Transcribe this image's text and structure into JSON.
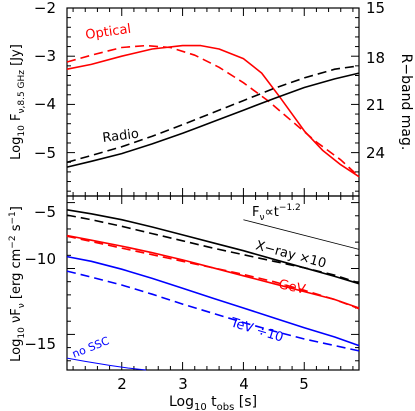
{
  "chart_data": [
    {
      "type": "line",
      "xlim": [
        1.1,
        5.9
      ],
      "ylim": [
        -5.9,
        -2
      ],
      "right_axis": {
        "label": "R−band mag.",
        "ticks": [
          "15",
          "18",
          "21",
          "24"
        ]
      },
      "y_ticks": [
        "−2",
        "−3",
        "−4",
        "−5"
      ],
      "ylabel_parts": {
        "prefix": "Log",
        "prefix_sub": "10",
        "main": " F",
        "sub": "ν,8.5 GHz",
        "unit": " [Jy]"
      },
      "annotations": [
        "Optical",
        "Radio"
      ],
      "series": [
        {
          "name": "Optical",
          "color": "#ff0000",
          "dashed": false,
          "x": [
            1.1,
            1.5,
            2.0,
            2.5,
            3.0,
            3.3,
            3.6,
            4.0,
            4.3,
            4.6,
            5.0,
            5.3,
            5.6,
            5.9
          ],
          "y": [
            -3.27,
            -3.17,
            -3.0,
            -2.85,
            -2.78,
            -2.78,
            -2.85,
            -3.05,
            -3.35,
            -3.85,
            -4.55,
            -4.95,
            -5.25,
            -5.5
          ]
        },
        {
          "name": "Optical",
          "color": "#ff0000",
          "dashed": true,
          "x": [
            1.1,
            1.5,
            2.0,
            2.4,
            2.8,
            3.2,
            3.6,
            4.0,
            4.4,
            4.8,
            5.2,
            5.6,
            5.9
          ],
          "y": [
            -3.12,
            -2.98,
            -2.82,
            -2.78,
            -2.82,
            -2.98,
            -3.23,
            -3.55,
            -3.92,
            -4.35,
            -4.78,
            -5.15,
            -5.5
          ]
        },
        {
          "name": "Radio",
          "color": "#000000",
          "dashed": false,
          "x": [
            1.1,
            1.5,
            2.0,
            2.5,
            3.0,
            3.5,
            4.0,
            4.5,
            5.0,
            5.5,
            5.9
          ],
          "y": [
            -5.3,
            -5.18,
            -5.02,
            -4.82,
            -4.6,
            -4.36,
            -4.12,
            -3.88,
            -3.65,
            -3.47,
            -3.35
          ]
        },
        {
          "name": "Radio",
          "color": "#000000",
          "dashed": true,
          "x": [
            1.1,
            1.5,
            2.0,
            2.5,
            3.0,
            3.5,
            4.0,
            4.5,
            5.0,
            5.5,
            5.9
          ],
          "y": [
            -5.2,
            -5.06,
            -4.88,
            -4.66,
            -4.42,
            -4.17,
            -3.92,
            -3.67,
            -3.45,
            -3.27,
            -3.2
          ]
        }
      ]
    },
    {
      "type": "line",
      "xlim": [
        1.1,
        5.9
      ],
      "ylim": [
        -17.7,
        -4.5
      ],
      "xlabel_parts": {
        "prefix": "Log",
        "prefix_sub": "10",
        "main": " t",
        "sub": "obs",
        "unit": " [s]"
      },
      "x_ticks": [
        "2",
        "3",
        "4",
        "5"
      ],
      "y_ticks": [
        "−5",
        "−10",
        "−15"
      ],
      "ylabel_parts": {
        "prefix": "Log",
        "prefix_sub": "10",
        "main": " νF",
        "sub": "ν",
        "unit": " [erg cm",
        "sup1": "−2",
        "unit2": " s",
        "sup2": "−1",
        "unit3": "]"
      },
      "annotations": [
        "X−ray ×10",
        "GeV",
        "TeV ÷10",
        "no SSC"
      ],
      "reference_line": {
        "label_main": "F",
        "label_sub": "ν",
        "label_rest": "∝t",
        "label_sup": "−1.2",
        "x": [
          4.0,
          5.9
        ],
        "y": [
          -6.3,
          -8.55
        ]
      },
      "series": [
        {
          "name": "X−ray ×10",
          "color": "#000000",
          "dashed": false,
          "x": [
            1.1,
            1.5,
            2.0,
            2.5,
            3.0,
            3.5,
            4.0,
            4.5,
            5.0,
            5.5,
            5.9
          ],
          "y": [
            -5.55,
            -5.85,
            -6.3,
            -6.85,
            -7.45,
            -8.05,
            -8.65,
            -9.3,
            -9.95,
            -10.6,
            -11.15
          ]
        },
        {
          "name": "X−ray ×10",
          "color": "#000000",
          "dashed": true,
          "x": [
            1.1,
            1.5,
            2.0,
            2.5,
            3.0,
            3.5,
            4.0,
            4.5,
            5.0,
            5.5,
            5.9
          ],
          "y": [
            -5.95,
            -6.3,
            -6.8,
            -7.35,
            -7.9,
            -8.45,
            -8.95,
            -9.45,
            -9.95,
            -10.5,
            -11.1
          ]
        },
        {
          "name": "GeV",
          "color": "#ff0000",
          "dashed": false,
          "x": [
            1.1,
            1.5,
            2.0,
            2.5,
            3.0,
            3.5,
            4.0,
            4.5,
            5.0,
            5.5,
            5.9
          ],
          "y": [
            -7.5,
            -7.85,
            -8.3,
            -8.8,
            -9.35,
            -9.95,
            -10.55,
            -11.15,
            -11.75,
            -12.35,
            -13.0
          ]
        },
        {
          "name": "GeV",
          "color": "#ff0000",
          "dashed": true,
          "x": [
            1.1,
            1.5,
            2.0,
            2.5,
            3.0,
            3.5,
            4.0,
            4.5,
            5.0,
            5.5,
            5.9
          ],
          "y": [
            -7.55,
            -7.95,
            -8.45,
            -8.95,
            -9.45,
            -9.95,
            -10.45,
            -11.0,
            -11.65,
            -12.35,
            -13.05
          ]
        },
        {
          "name": "TeV ÷10",
          "color": "#0000ff",
          "dashed": false,
          "x": [
            1.1,
            1.5,
            2.0,
            2.5,
            3.0,
            3.5,
            4.0,
            4.5,
            5.0,
            5.5,
            5.9
          ],
          "y": [
            -9.1,
            -9.45,
            -10.05,
            -10.75,
            -11.5,
            -12.25,
            -13.0,
            -13.75,
            -14.5,
            -15.2,
            -15.85
          ]
        },
        {
          "name": "TeV ÷10",
          "color": "#0000ff",
          "dashed": true,
          "x": [
            1.1,
            1.5,
            2.0,
            2.5,
            3.0,
            3.5,
            4.0,
            4.5,
            5.0,
            5.5,
            5.9
          ],
          "y": [
            -10.2,
            -10.65,
            -11.25,
            -11.95,
            -12.7,
            -13.4,
            -14.1,
            -14.75,
            -15.35,
            -15.85,
            -16.25
          ]
        },
        {
          "name": "no SSC",
          "color": "#0000ff",
          "dashed": false,
          "x": [
            1.1,
            1.4,
            1.8,
            2.1,
            2.4
          ],
          "y": [
            -16.8,
            -17.05,
            -17.35,
            -17.55,
            -17.7
          ]
        }
      ]
    }
  ]
}
